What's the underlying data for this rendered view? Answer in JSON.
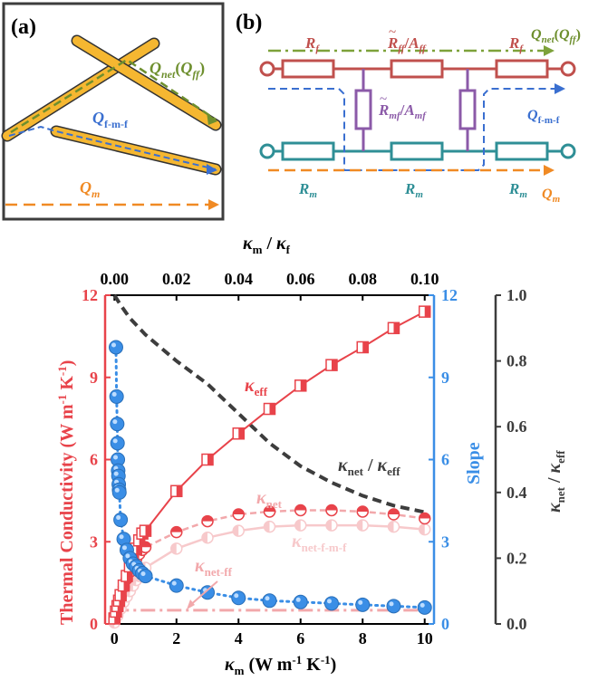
{
  "panel_a": {
    "label": "(a)",
    "q_net_main": "Q",
    "q_net_sub": "net",
    "q_net_paren_open": "(",
    "q_net_paren_main": "Q",
    "q_net_paren_sub": "ff",
    "q_net_paren_close": ")",
    "q_fmf_main": "Q",
    "q_fmf_sub": "f-m-f",
    "q_m_main": "Q",
    "q_m_sub": "m"
  },
  "panel_b": {
    "label": "(b)",
    "rf_left": {
      "main": "R",
      "sub": "f"
    },
    "rff_mid": {
      "main": "R",
      "sub": "ff",
      "den_main": "A",
      "den_sub": "ff",
      "slash": "/"
    },
    "rf_right": {
      "main": "R",
      "sub": "f"
    },
    "q_net_main": "Q",
    "q_net_sub": "net",
    "q_net_paren_open": "(",
    "q_net_paren_main": "Q",
    "q_net_paren_sub": "ff",
    "q_net_paren_close": ")",
    "rmf": {
      "main": "R",
      "sub": "mf",
      "den_main": "A",
      "den_sub": "mf",
      "slash": "/"
    },
    "q_fmf_main": "Q",
    "q_fmf_sub": "f-m-f",
    "rm_left": {
      "main": "R",
      "sub": "m"
    },
    "rm_mid": {
      "main": "R",
      "sub": "m"
    },
    "rm_right": {
      "main": "R",
      "sub": "m"
    },
    "q_m_main": "Q",
    "q_m_sub": "m"
  },
  "chart_data": {
    "type": "line",
    "colors": {
      "red": "#e8434a",
      "pink": "#f2a8ab",
      "light_pink": "#f7c9cb",
      "blue": "#3a8ee6",
      "gray": "#3d3d3d",
      "green": "#7da23a",
      "orange": "#f08a24",
      "teal": "#2f8f96",
      "purple": "#8b5aa8",
      "brick": "#c0504d",
      "gold": "#f5b731"
    },
    "x_bottom": {
      "label_main": "κ",
      "label_sub": "m",
      "label_units": " (W m",
      "label_exp": "-1",
      "label_mid": " K",
      "label_exp2": "-1",
      "label_end": ")",
      "range": [
        -0.3,
        10.3
      ],
      "ticks": [
        0,
        2,
        4,
        6,
        8,
        10
      ],
      "tick_labels": [
        "0",
        "2",
        "4",
        "6",
        "8",
        "10"
      ]
    },
    "x_top": {
      "label_a": "κ",
      "label_a_sub": "m",
      "label_slash": " / ",
      "label_b": "κ",
      "label_b_sub": "f",
      "ticks": [
        0.0,
        0.02,
        0.04,
        0.06,
        0.08,
        0.1
      ],
      "tick_labels": [
        "0.00",
        "0.02",
        "0.04",
        "0.06",
        "0.08",
        "0.10"
      ]
    },
    "y_left": {
      "label": "Thermal Conductivity",
      "label_units": " (W m",
      "label_exp": "-1",
      "label_mid": " K",
      "label_exp2": "-1",
      "label_end": ")",
      "range": [
        0,
        12
      ],
      "ticks": [
        0,
        3,
        6,
        9,
        12
      ],
      "tick_labels": [
        "0",
        "3",
        "6",
        "9",
        "12"
      ]
    },
    "y_right_slope": {
      "label": "Slope",
      "range": [
        0,
        12
      ],
      "ticks": [
        0,
        3,
        6,
        9,
        12
      ],
      "tick_labels": [
        "0",
        "3",
        "6",
        "9",
        "12"
      ]
    },
    "y_right_ratio": {
      "label_a": "κ",
      "label_a_sub": "net",
      "label_slash": " / ",
      "label_b": "κ",
      "label_b_sub": "eff",
      "range": [
        0,
        1
      ],
      "ticks": [
        0.0,
        0.2,
        0.4,
        0.6,
        0.8,
        1.0
      ],
      "tick_labels": [
        "0.0",
        "0.2",
        "0.4",
        "0.6",
        "0.8",
        "1.0"
      ]
    },
    "series": [
      {
        "name": "κeff",
        "label_main": "κ",
        "label_sub": "eff",
        "x": [
          0,
          0.05,
          0.1,
          0.15,
          0.2,
          0.3,
          0.4,
          0.5,
          0.6,
          0.7,
          0.8,
          0.9,
          1,
          2,
          3,
          4,
          5,
          6,
          7,
          8,
          9,
          10
        ],
        "y": [
          0.2,
          0.45,
          0.65,
          0.85,
          1.05,
          1.4,
          1.75,
          2.1,
          2.45,
          2.75,
          3.05,
          3.3,
          3.4,
          4.85,
          6.0,
          6.95,
          7.85,
          8.7,
          9.45,
          10.1,
          10.8,
          11.4
        ]
      },
      {
        "name": "κnet",
        "label_main": "κ",
        "label_sub": "net",
        "x": [
          0,
          0.1,
          0.2,
          0.3,
          0.4,
          0.5,
          0.6,
          0.7,
          0.8,
          0.9,
          1,
          2,
          3,
          4,
          5,
          6,
          7,
          8,
          9,
          10
        ],
        "y": [
          0.2,
          0.6,
          1.0,
          1.35,
          1.65,
          1.9,
          2.15,
          2.35,
          2.55,
          2.7,
          2.8,
          3.35,
          3.75,
          4.0,
          4.1,
          4.15,
          4.15,
          4.1,
          4.0,
          3.85
        ]
      },
      {
        "name": "κnet-f-m-f",
        "label_main": "κ",
        "label_sub": "net-f-m-f",
        "x": [
          0,
          0.1,
          0.2,
          0.3,
          0.4,
          0.5,
          0.6,
          0.7,
          0.8,
          0.9,
          1,
          2,
          3,
          4,
          5,
          6,
          7,
          8,
          9,
          10
        ],
        "y": [
          0.05,
          0.3,
          0.55,
          0.8,
          1.0,
          1.2,
          1.4,
          1.6,
          1.75,
          1.9,
          2.05,
          2.75,
          3.15,
          3.4,
          3.55,
          3.6,
          3.6,
          3.6,
          3.55,
          3.45
        ]
      },
      {
        "name": "κnet-ff",
        "label_main": "κ",
        "label_sub": "net-ff",
        "x": [
          0,
          10
        ],
        "y": [
          0.5,
          0.5
        ]
      },
      {
        "name": "Slope",
        "x": [
          0.05,
          0.07,
          0.09,
          0.1,
          0.11,
          0.12,
          0.13,
          0.14,
          0.15,
          0.16,
          0.2,
          0.3,
          0.4,
          0.5,
          0.6,
          0.7,
          0.8,
          0.9,
          1,
          2,
          3,
          4,
          5,
          6,
          7,
          8,
          9,
          10
        ],
        "y": [
          10.1,
          8.3,
          7.3,
          6.6,
          6.0,
          5.6,
          5.4,
          5.1,
          4.9,
          4.8,
          3.8,
          3.1,
          2.7,
          2.4,
          2.2,
          2.1,
          1.95,
          1.85,
          1.75,
          1.4,
          1.15,
          0.95,
          0.85,
          0.8,
          0.75,
          0.7,
          0.65,
          0.6
        ]
      },
      {
        "name": "κnet / κeff",
        "label_a": "κ",
        "label_a_sub": "net",
        "label_slash": " / ",
        "label_b": "κ",
        "label_b_sub": "eff",
        "x": [
          0,
          0.2,
          0.5,
          1,
          1.5,
          2,
          3,
          4,
          5,
          6,
          7,
          8,
          9,
          10
        ],
        "y": [
          1.0,
          0.97,
          0.93,
          0.88,
          0.84,
          0.8,
          0.73,
          0.64,
          0.55,
          0.48,
          0.43,
          0.39,
          0.36,
          0.34
        ]
      }
    ]
  }
}
